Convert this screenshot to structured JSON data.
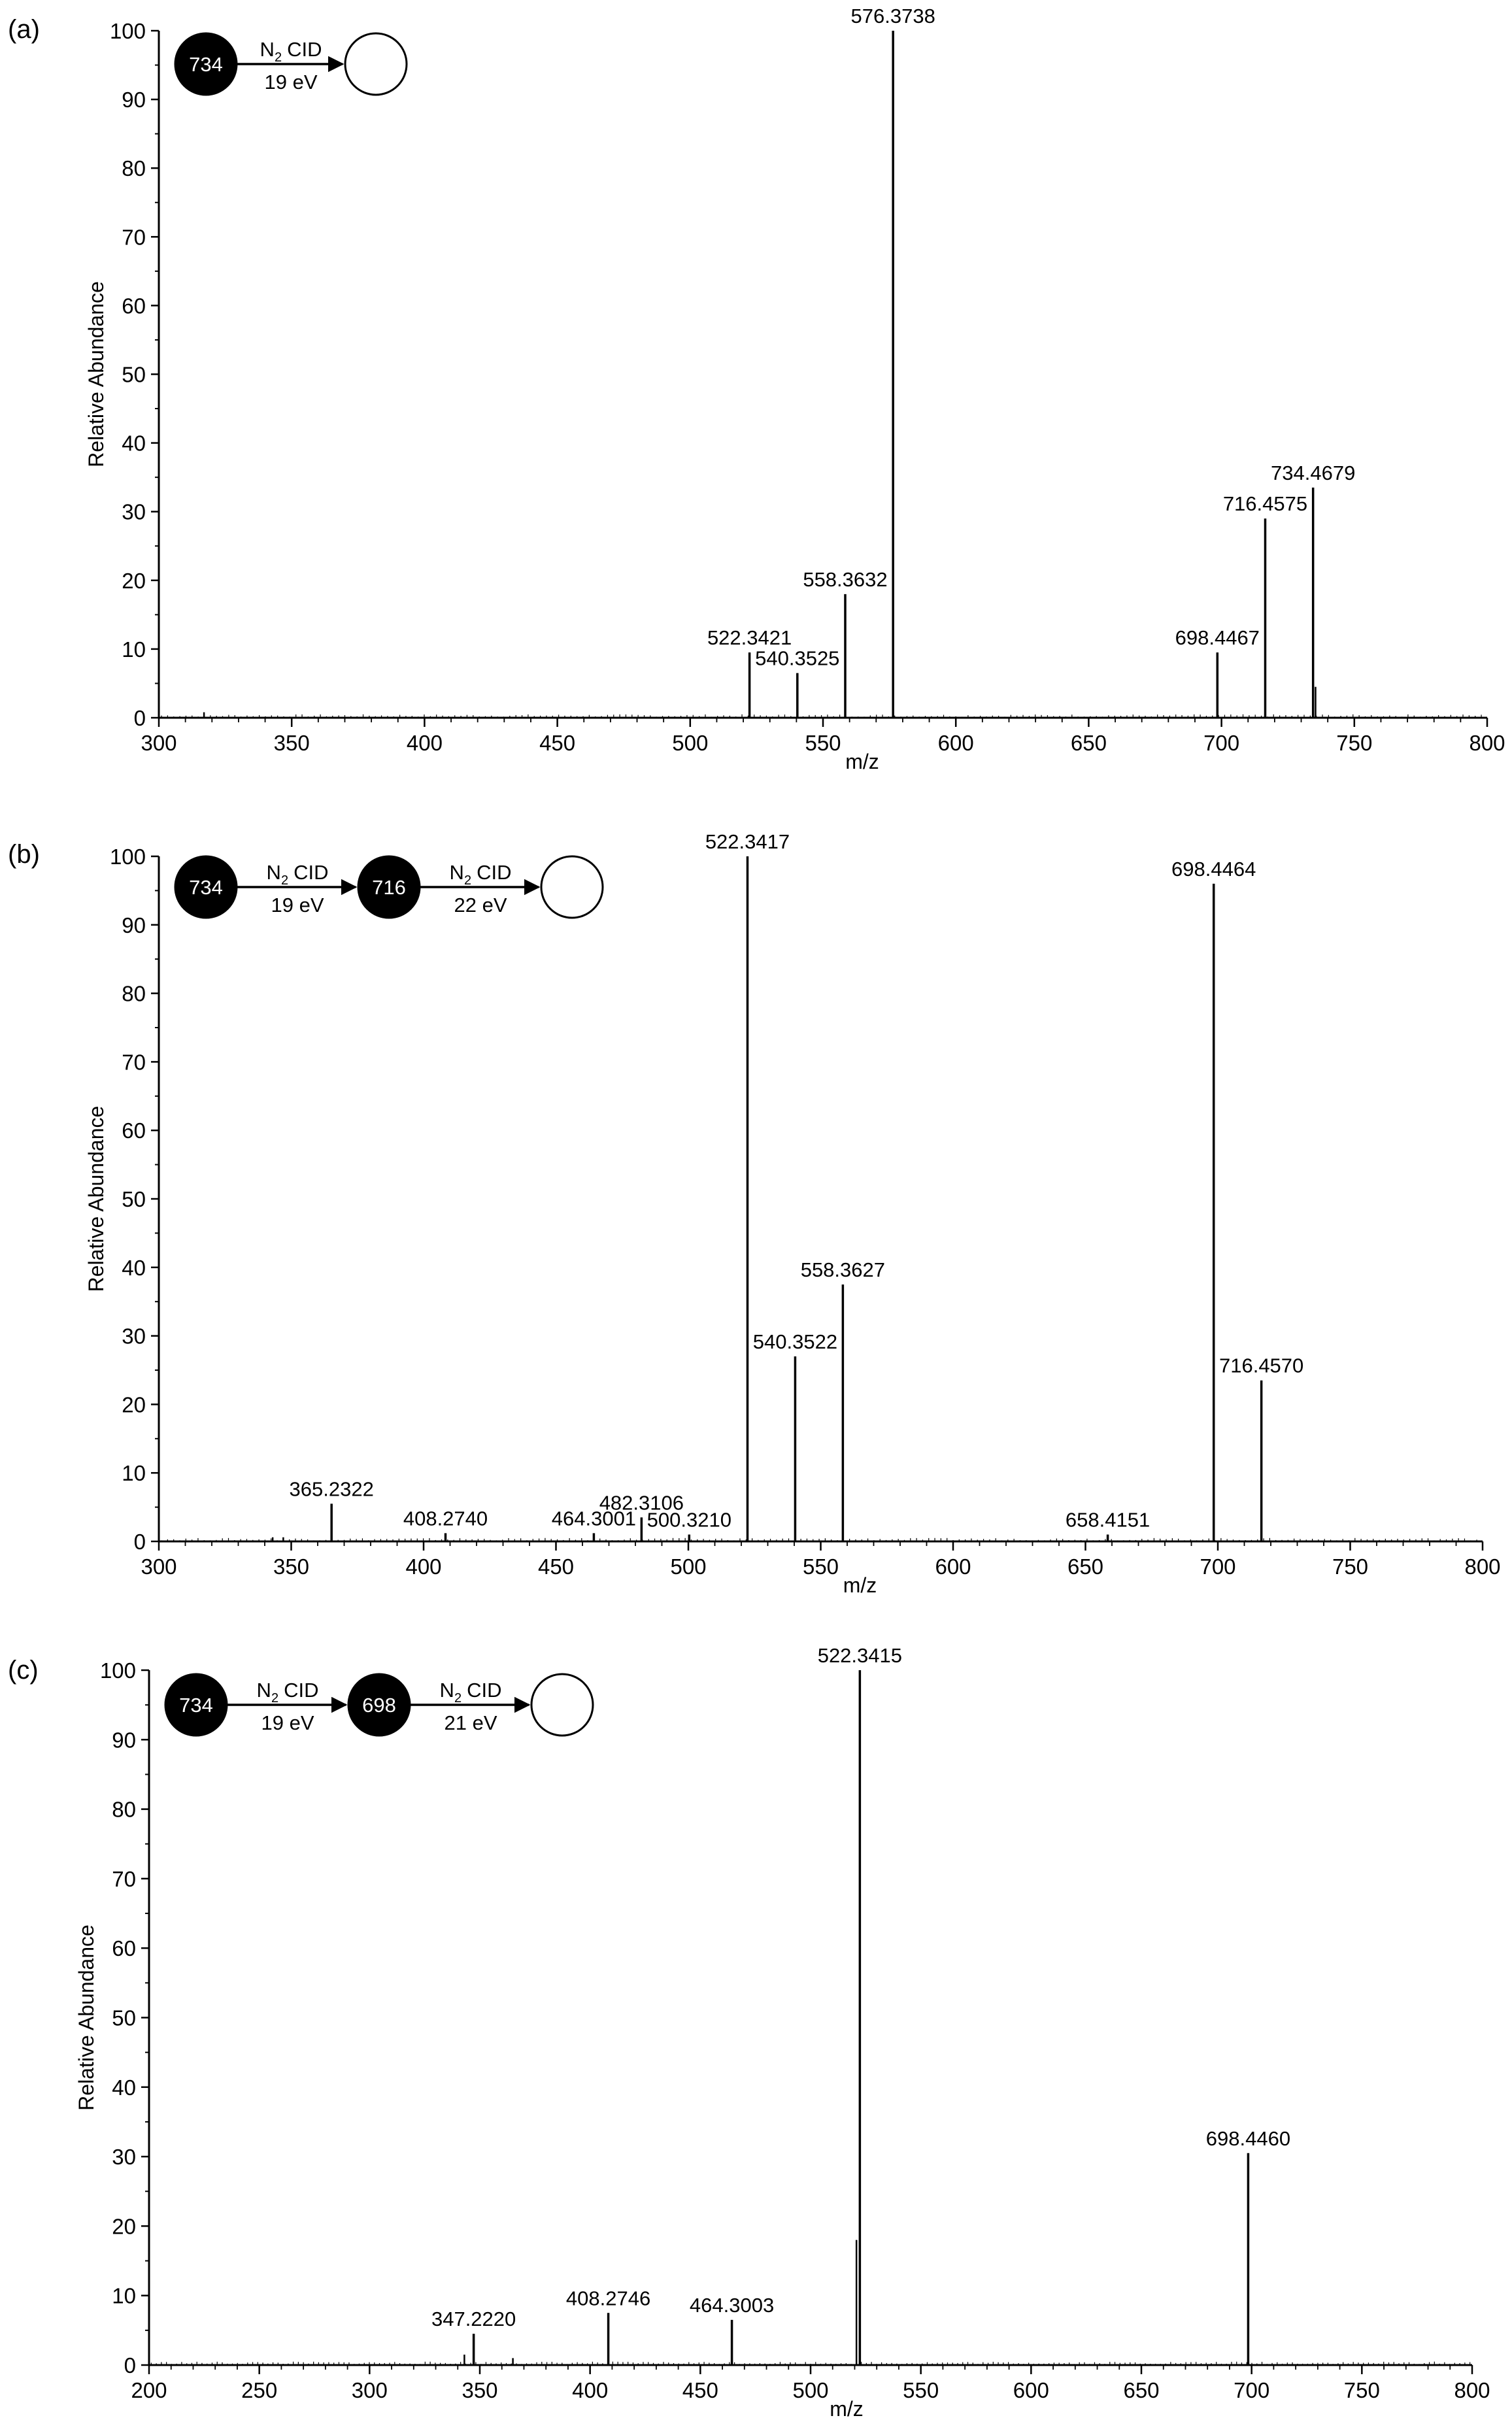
{
  "chart_data": [
    {
      "type": "bar",
      "panel_label": "(a)",
      "xlabel": "m/z",
      "ylabel": "Relative Abundance",
      "xlim": [
        300,
        800
      ],
      "ylim": [
        0,
        100
      ],
      "xticks": [
        300,
        350,
        400,
        450,
        500,
        550,
        600,
        650,
        700,
        750,
        800
      ],
      "yticks": [
        0,
        10,
        20,
        30,
        40,
        50,
        60,
        70,
        80,
        90,
        100
      ],
      "peaks": [
        {
          "x": 522.3421,
          "y": 9.5,
          "label": "522.3421"
        },
        {
          "x": 540.3525,
          "y": 6.5,
          "label": "540.3525"
        },
        {
          "x": 558.3632,
          "y": 18,
          "label": "558.3632"
        },
        {
          "x": 576.3738,
          "y": 100,
          "label": "576.3738"
        },
        {
          "x": 698.4467,
          "y": 9.5,
          "label": "698.4467"
        },
        {
          "x": 716.4575,
          "y": 29,
          "label": "716.4575"
        },
        {
          "x": 734.4679,
          "y": 33.5,
          "label": "734.4679"
        }
      ],
      "minor_peaks": [
        {
          "x": 317,
          "y": 0.8
        },
        {
          "x": 735.4,
          "y": 4.5
        }
      ],
      "scheme": {
        "nodes": [
          {
            "label": "734",
            "filled": true
          },
          {
            "label": "",
            "filled": false
          }
        ],
        "steps": [
          {
            "gas": "N",
            "sub": "2",
            "method": "CID",
            "energy": "19 eV"
          }
        ]
      }
    },
    {
      "type": "bar",
      "panel_label": "(b)",
      "xlabel": "m/z",
      "ylabel": "Relative Abundance",
      "xlim": [
        300,
        800
      ],
      "ylim": [
        0,
        100
      ],
      "xticks": [
        300,
        350,
        400,
        450,
        500,
        550,
        600,
        650,
        700,
        750,
        800
      ],
      "yticks": [
        0,
        10,
        20,
        30,
        40,
        50,
        60,
        70,
        80,
        90,
        100
      ],
      "peaks": [
        {
          "x": 365.2322,
          "y": 5.5,
          "label": "365.2322"
        },
        {
          "x": 408.274,
          "y": 1.2,
          "label": "408.2740"
        },
        {
          "x": 464.3001,
          "y": 1.2,
          "label": "464.3001"
        },
        {
          "x": 482.3106,
          "y": 3.5,
          "label": "482.3106"
        },
        {
          "x": 500.321,
          "y": 1.0,
          "label": "500.3210"
        },
        {
          "x": 522.3417,
          "y": 100,
          "label": "522.3417"
        },
        {
          "x": 540.3522,
          "y": 27,
          "label": "540.3522"
        },
        {
          "x": 558.3627,
          "y": 37.5,
          "label": "558.3627"
        },
        {
          "x": 658.4151,
          "y": 1.0,
          "label": "658.4151"
        },
        {
          "x": 698.4464,
          "y": 96,
          "label": "698.4464"
        },
        {
          "x": 716.457,
          "y": 23.5,
          "label": "716.4570"
        }
      ],
      "minor_peaks": [
        {
          "x": 343,
          "y": 0.6
        },
        {
          "x": 347,
          "y": 0.6
        }
      ],
      "scheme": {
        "nodes": [
          {
            "label": "734",
            "filled": true
          },
          {
            "label": "716",
            "filled": true
          },
          {
            "label": "",
            "filled": false
          }
        ],
        "steps": [
          {
            "gas": "N",
            "sub": "2",
            "method": "CID",
            "energy": "19 eV"
          },
          {
            "gas": "N",
            "sub": "2",
            "method": "CID",
            "energy": "22 eV"
          }
        ]
      }
    },
    {
      "type": "bar",
      "panel_label": "(c)",
      "xlabel": "m/z",
      "ylabel": "Relative Abundance",
      "xlim": [
        200,
        800
      ],
      "ylim": [
        0,
        100
      ],
      "xticks": [
        200,
        250,
        300,
        350,
        400,
        450,
        500,
        550,
        600,
        650,
        700,
        750,
        800
      ],
      "yticks": [
        0,
        10,
        20,
        30,
        40,
        50,
        60,
        70,
        80,
        90,
        100
      ],
      "peaks": [
        {
          "x": 347.222,
          "y": 4.5,
          "label": "347.2220"
        },
        {
          "x": 408.2746,
          "y": 7.5,
          "label": "408.2746"
        },
        {
          "x": 464.3003,
          "y": 6.5,
          "label": "464.3003"
        },
        {
          "x": 522.3415,
          "y": 100,
          "label": "522.3415"
        },
        {
          "x": 698.446,
          "y": 30.5,
          "label": "698.4460"
        }
      ],
      "minor_peaks": [
        {
          "x": 343,
          "y": 1.5
        },
        {
          "x": 365,
          "y": 1.0
        },
        {
          "x": 520.8,
          "y": 18
        }
      ],
      "scheme": {
        "nodes": [
          {
            "label": "734",
            "filled": true
          },
          {
            "label": "698",
            "filled": true
          },
          {
            "label": "",
            "filled": false
          }
        ],
        "steps": [
          {
            "gas": "N",
            "sub": "2",
            "method": "CID",
            "energy": "19 eV"
          },
          {
            "gas": "N",
            "sub": "2",
            "method": "CID",
            "energy": "21 eV"
          }
        ]
      }
    }
  ]
}
